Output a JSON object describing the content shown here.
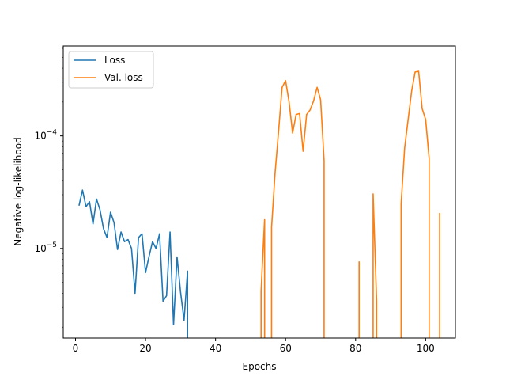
{
  "chart_data": {
    "type": "line",
    "title": "",
    "xlabel": "Epochs",
    "ylabel": "Negative log-likelihood",
    "xscale": "linear",
    "yscale": "log",
    "xlim": [
      -3.5,
      108.5
    ],
    "ylim": [
      1.6e-06,
      0.00063
    ],
    "x_ticks": [
      0,
      20,
      40,
      60,
      80,
      100
    ],
    "x_tick_labels": [
      "0",
      "20",
      "40",
      "60",
      "80",
      "100"
    ],
    "y_ticks": [
      1e-05,
      0.0001
    ],
    "y_tick_labels": [
      {
        "base": "10",
        "exp": "−5"
      },
      {
        "base": "10",
        "exp": "−4"
      }
    ],
    "grid": false,
    "legend_position": "top-left",
    "series": [
      {
        "name": "Loss",
        "color": "#1f77b4",
        "x": [
          1,
          2,
          3,
          4,
          5,
          6,
          7,
          8,
          9,
          10,
          11,
          12,
          13,
          14,
          15,
          16,
          17,
          18,
          19,
          20,
          21,
          22,
          23,
          24,
          25,
          26,
          27,
          28,
          29,
          30,
          31,
          32
        ],
        "y": [
          2.4e-05,
          3.3e-05,
          2.35e-05,
          2.6e-05,
          1.65e-05,
          2.75e-05,
          2.2e-05,
          1.5e-05,
          1.25e-05,
          2.1e-05,
          1.7e-05,
          9.8e-06,
          1.4e-05,
          1.15e-05,
          1.2e-05,
          1e-05,
          4e-06,
          1.25e-05,
          1.35e-05,
          6.1e-06,
          8.5e-06,
          1.15e-05,
          1e-05,
          1.35e-05,
          3.4e-06,
          3.8e-06,
          1.4e-05,
          2.1e-06,
          8.4e-06,
          4.1e-06,
          2.3e-06,
          6.3e-06
        ],
        "falls_to_zero_after_last": true
      },
      {
        "name": "Val. loss",
        "color": "#ff7f0e",
        "segments": [
          {
            "x": [
              53,
              54
            ],
            "y": [
              4.2e-06,
              1.8e-05
            ],
            "rise_from_zero": true,
            "fall_to_zero": true
          },
          {
            "x": [
              56,
              57,
              58,
              59,
              60,
              61,
              62,
              63,
              64,
              65,
              66,
              67,
              68,
              69,
              70,
              71
            ],
            "y": [
              1.55e-05,
              4.7e-05,
              0.00011,
              0.00027,
              0.00031,
              0.0002,
              0.000106,
              0.000155,
              0.000158,
              7.3e-05,
              0.000155,
              0.00017,
              0.000205,
              0.00027,
              0.00021,
              6e-05
            ],
            "rise_from_zero": true,
            "fall_to_zero": true
          },
          {
            "x": [
              81
            ],
            "y": [
              7.6e-06
            ],
            "rise_from_zero": true,
            "fall_to_zero": true
          },
          {
            "x": [
              85,
              86
            ],
            "y": [
              3.05e-05,
              3.4e-06
            ],
            "rise_from_zero": true,
            "fall_to_zero": true
          },
          {
            "x": [
              93,
              94,
              95,
              96,
              97,
              98,
              99,
              100,
              101
            ],
            "y": [
              2.5e-05,
              7.8e-05,
              0.00014,
              0.00025,
              0.00037,
              0.000375,
              0.000175,
              0.00014,
              6.3e-05
            ],
            "rise_from_zero": true,
            "fall_to_zero": true
          },
          {
            "x": [
              104
            ],
            "y": [
              2.05e-05
            ],
            "rise_from_zero": true,
            "fall_to_zero": true
          }
        ]
      }
    ]
  }
}
